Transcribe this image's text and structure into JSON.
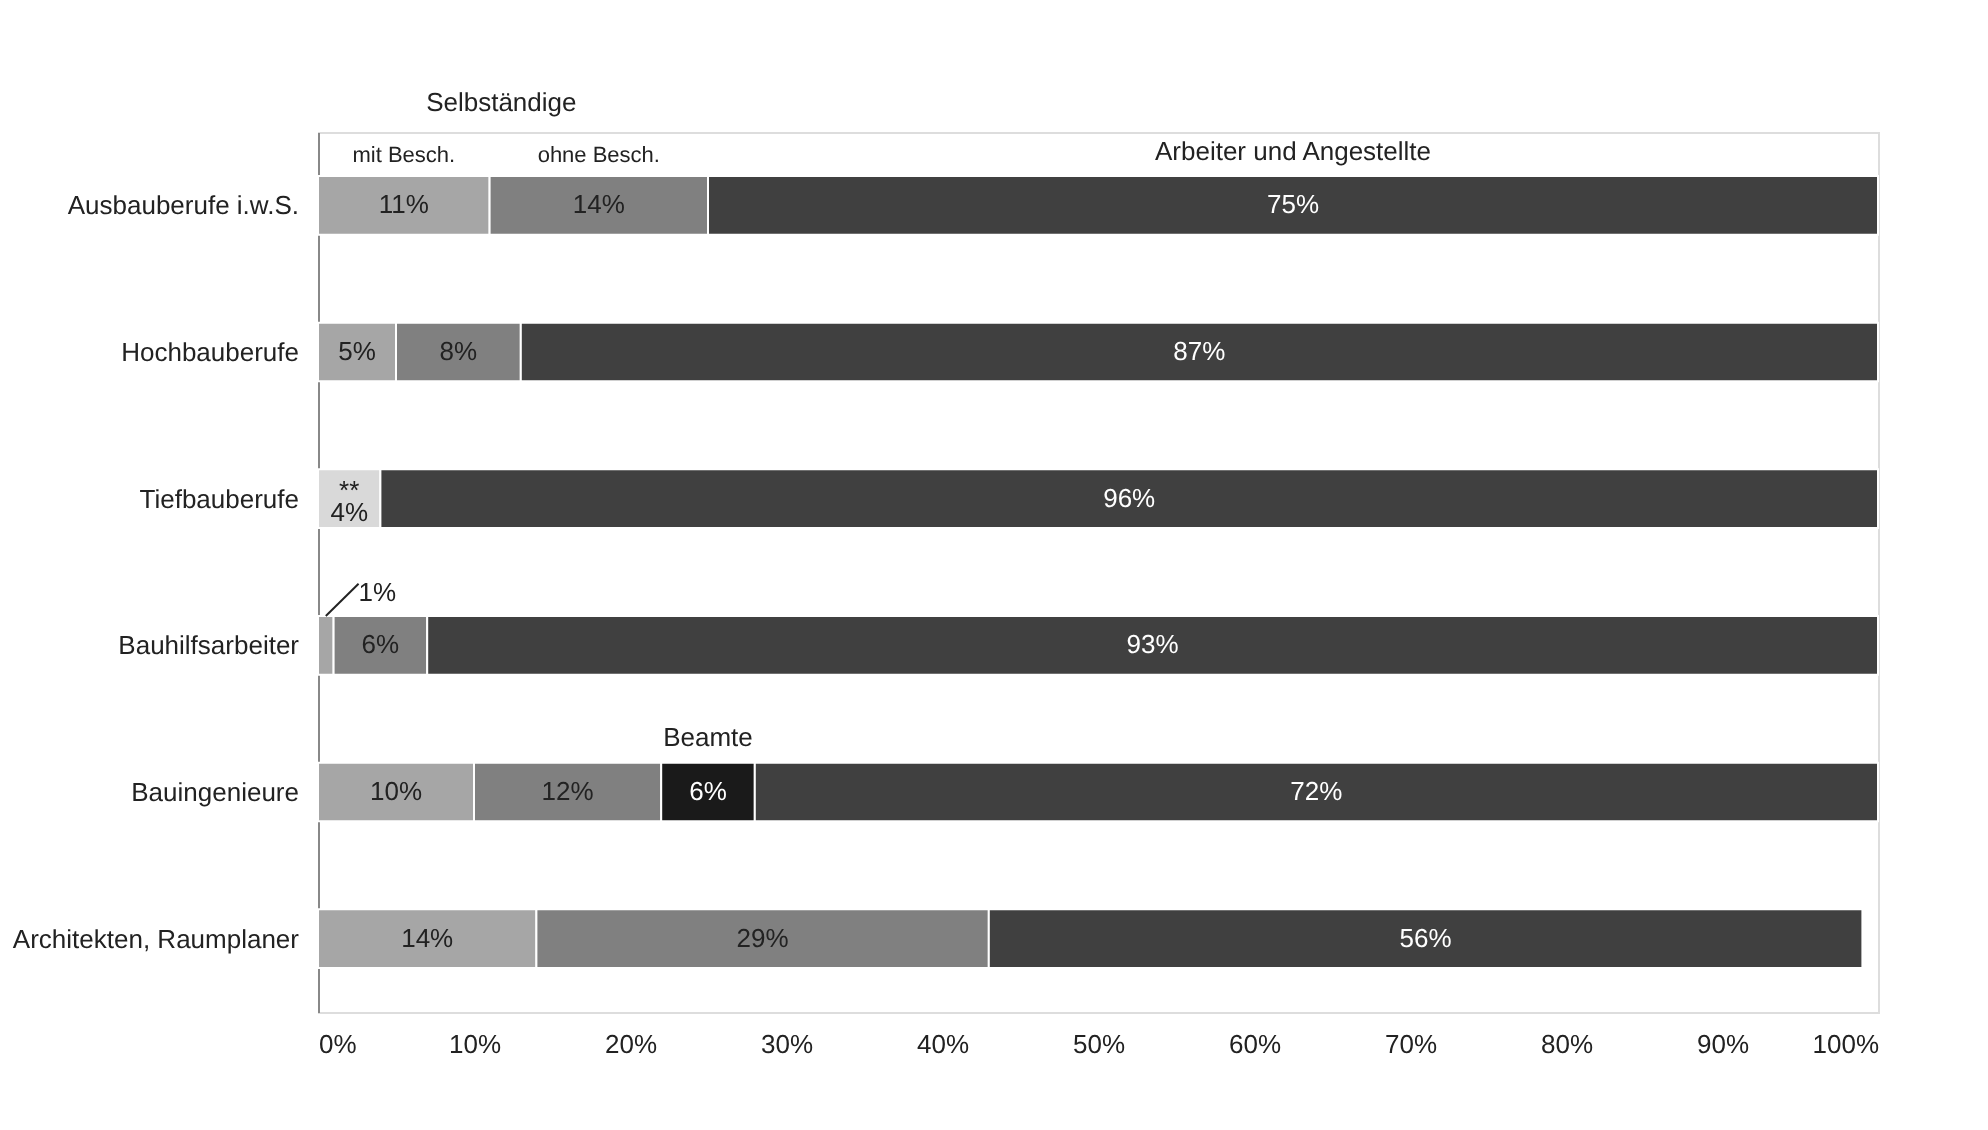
{
  "chart_data": {
    "type": "bar",
    "orientation": "horizontal",
    "stacked": true,
    "categories": [
      "Ausbauberufe i.w.S.",
      "Hochbauberufe",
      "Tiefbauberufe",
      "Bauhilfsarbeiter",
      "Bauingenieure",
      "Architekten, Raumplaner"
    ],
    "series": [
      {
        "color": "#d9d9d9",
        "values": [
          null,
          null,
          4,
          null,
          null,
          null
        ],
        "value_labels": [
          null,
          null,
          "**\n4%",
          null,
          null,
          null
        ]
      },
      {
        "name": "mit Besch.",
        "color": "#a6a6a6",
        "values": [
          11,
          5,
          null,
          1,
          10,
          14
        ],
        "value_labels": [
          "11%",
          "5%",
          null,
          "1%",
          "10%",
          "14%"
        ]
      },
      {
        "name": "ohne Besch.",
        "color": "#808080",
        "values": [
          14,
          8,
          null,
          6,
          12,
          29
        ],
        "value_labels": [
          "14%",
          "8%",
          null,
          "6%",
          "12%",
          "29%"
        ]
      },
      {
        "name": "Beamte",
        "color": "#1a1a1a",
        "values": [
          null,
          null,
          null,
          null,
          6,
          null
        ],
        "value_labels": [
          null,
          null,
          null,
          null,
          "6%",
          null
        ]
      },
      {
        "name": "Arbeiter und Angestellte",
        "color": "#404040",
        "values": [
          75,
          87,
          96,
          93,
          72,
          56
        ],
        "value_labels": [
          "75%",
          "87%",
          "96%",
          "93%",
          "72%",
          "56%"
        ]
      }
    ],
    "xlim": [
      0,
      100
    ],
    "xticks": [
      {
        "value": 0,
        "label": "0%"
      },
      {
        "value": 10,
        "label": "10%"
      },
      {
        "value": 20,
        "label": "20%"
      },
      {
        "value": 30,
        "label": "30%"
      },
      {
        "value": 40,
        "label": "40%"
      },
      {
        "value": 50,
        "label": "50%"
      },
      {
        "value": 60,
        "label": "60%"
      },
      {
        "value": 70,
        "label": "70%"
      },
      {
        "value": 80,
        "label": "80%"
      },
      {
        "value": 90,
        "label": "90%"
      },
      {
        "value": 100,
        "label": "100%"
      }
    ],
    "grid": false,
    "annotations": [
      "Selbständige"
    ]
  }
}
